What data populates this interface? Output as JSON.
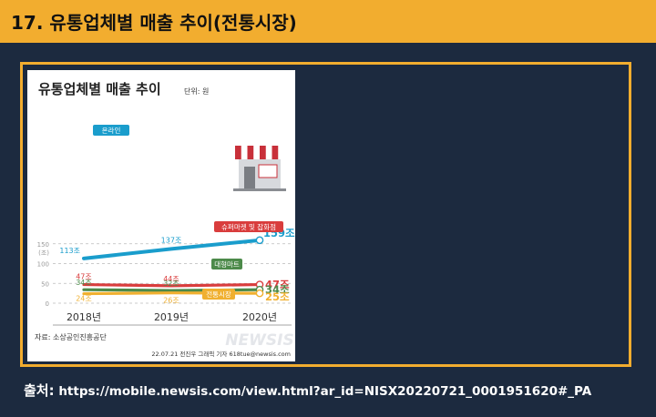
{
  "slide": {
    "title": "17. 유통업체별 매출 추이(전통시장)",
    "source_label": "출처:",
    "source_url": "https://mobile.newsis.com/view.html?ar_id=NISX20220721_0001951620#_PA"
  },
  "colors": {
    "header_bar": "#f2ad2f",
    "background": "#1c2a3f",
    "online": "#1a9dcc",
    "supermarket": "#d93d3d",
    "bigmart": "#4c8a4a",
    "market": "#f0b030"
  },
  "chart_data": {
    "type": "line",
    "title": "유통업체별 매출 추이",
    "unit": "단위: 원",
    "categories": [
      "2018년",
      "2019년",
      "2020년"
    ],
    "ylabel": "(조)",
    "y_ticks": [
      "0",
      "50",
      "100",
      "150"
    ],
    "ylim": [
      0,
      160
    ],
    "series": [
      {
        "name": "온라인",
        "values": [
          113,
          137,
          159
        ],
        "labels": [
          "113조",
          "137조",
          "159조"
        ],
        "color": "#1a9dcc"
      },
      {
        "name": "슈퍼마켓 및 잡화점",
        "values": [
          47,
          44,
          47
        ],
        "labels": [
          "47조",
          "44조",
          "47조"
        ],
        "color": "#d93d3d"
      },
      {
        "name": "대형마트",
        "values": [
          34,
          32,
          34
        ],
        "labels": [
          "34조",
          "32조",
          "34조"
        ],
        "color": "#4c8a4a"
      },
      {
        "name": "전통시장",
        "values": [
          24,
          26,
          25
        ],
        "labels": [
          "24조",
          "26조",
          "25조"
        ],
        "color": "#f0b030"
      }
    ],
    "footnote_source": "자료: 소상공인진흥공단",
    "credit": "22.07.21 전진우 그래픽 기자 618tue@newsis.com",
    "watermark": "NEWSIS"
  }
}
